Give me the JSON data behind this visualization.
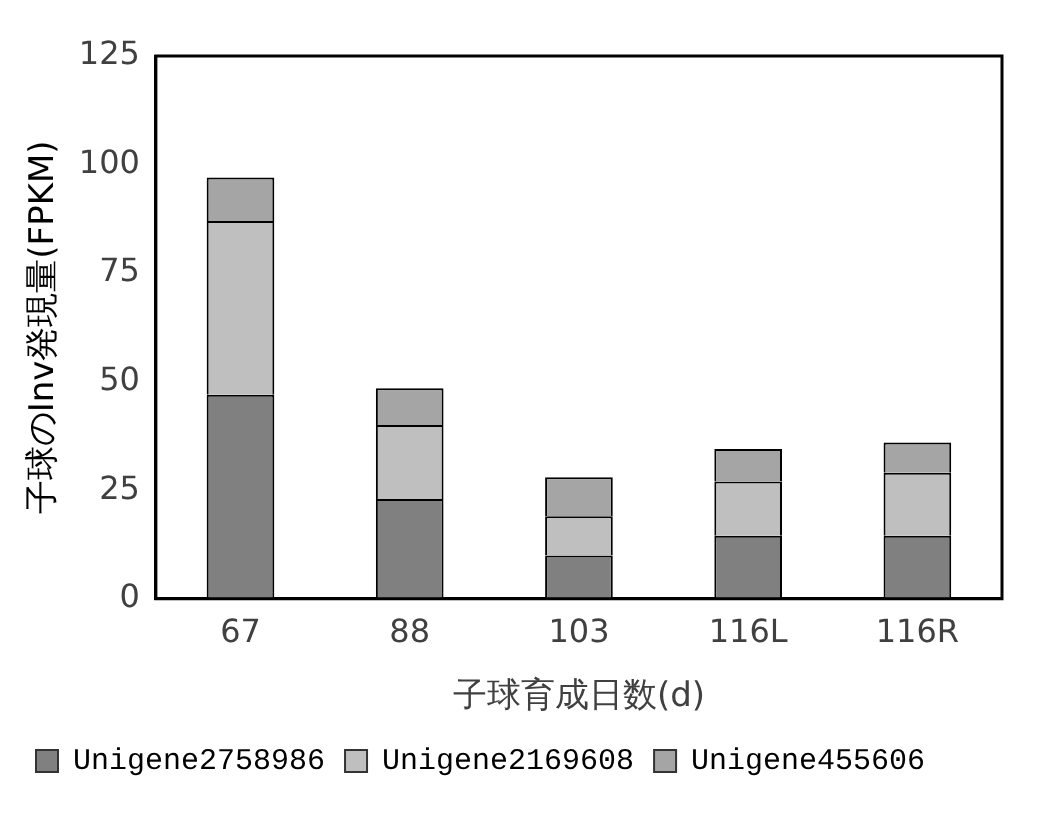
{
  "chart_data": {
    "type": "bar",
    "stacked": true,
    "xlabel": "子球育成日数(d)",
    "ylabel": "子球のInv発現量(FPKM)",
    "categories": [
      "67",
      "88",
      "103",
      "116L",
      "116R"
    ],
    "series": [
      {
        "name": "Unigene2758986",
        "color": "#808080",
        "values": [
          47,
          23,
          10,
          14.5,
          14.5
        ]
      },
      {
        "name": "Unigene2169608",
        "color": "#bfbfbf",
        "values": [
          40,
          17,
          9,
          12.5,
          14.5
        ]
      },
      {
        "name": "Unigene455606",
        "color": "#a5a5a5",
        "values": [
          10,
          8.5,
          9,
          7.5,
          7
        ]
      }
    ],
    "ylim": [
      0,
      125
    ],
    "yticks": [
      0,
      25,
      50,
      75,
      100,
      125
    ],
    "grid": false,
    "legend": "bottom"
  }
}
